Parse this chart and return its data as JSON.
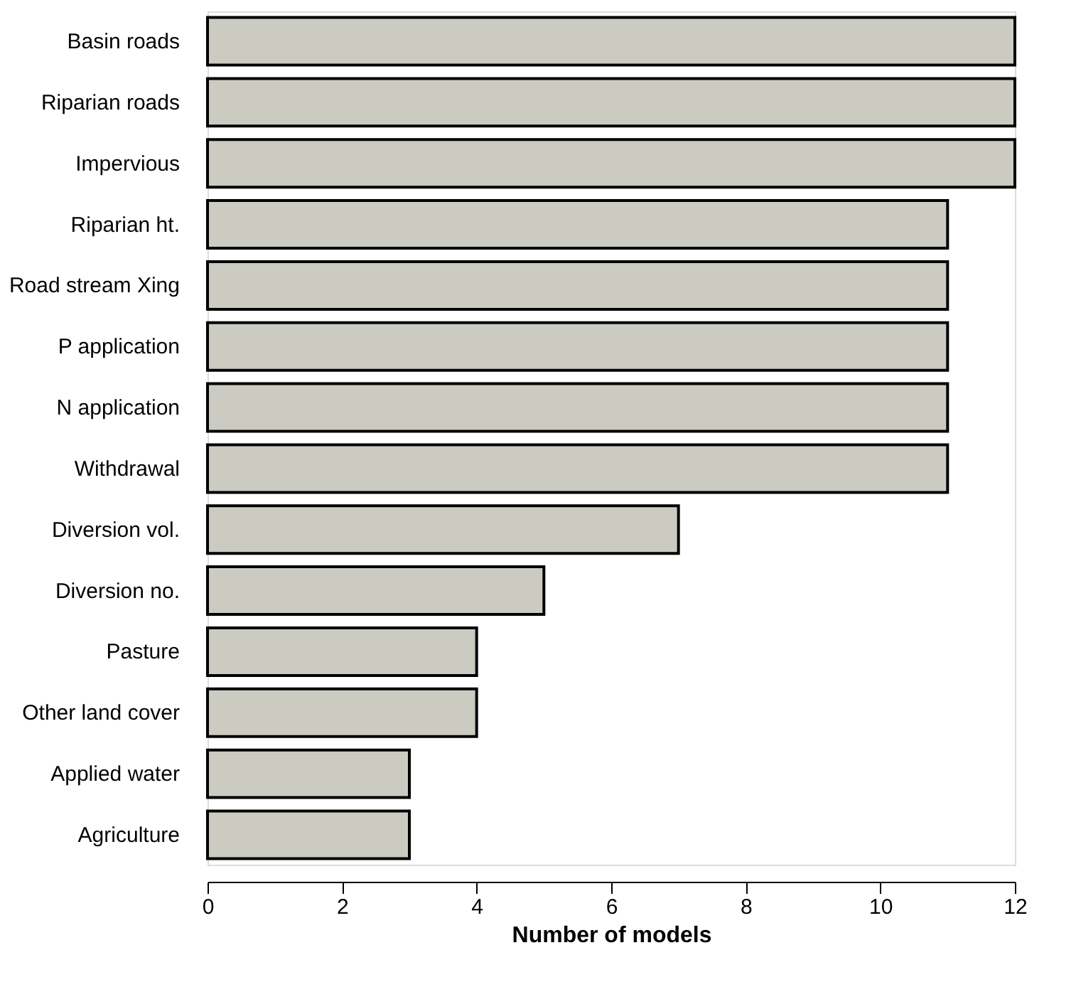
{
  "chart_data": {
    "type": "bar",
    "orientation": "horizontal",
    "xlabel": "Number of models",
    "categories": [
      "Basin roads",
      "Riparian roads",
      "Impervious",
      "Riparian ht.",
      "Road stream Xing",
      "P application",
      "N application",
      "Withdrawal",
      "Diversion vol.",
      "Diversion no.",
      "Pasture",
      "Other land cover",
      "Applied water",
      "Agriculture"
    ],
    "values": [
      12,
      12,
      12,
      11,
      11,
      11,
      11,
      11,
      7,
      5,
      4,
      4,
      3,
      3
    ],
    "color": "#cbcbc2",
    "xlim": [
      0,
      12
    ],
    "xticks": [
      0,
      2,
      4,
      6,
      8,
      10,
      12
    ],
    "grid": false
  }
}
